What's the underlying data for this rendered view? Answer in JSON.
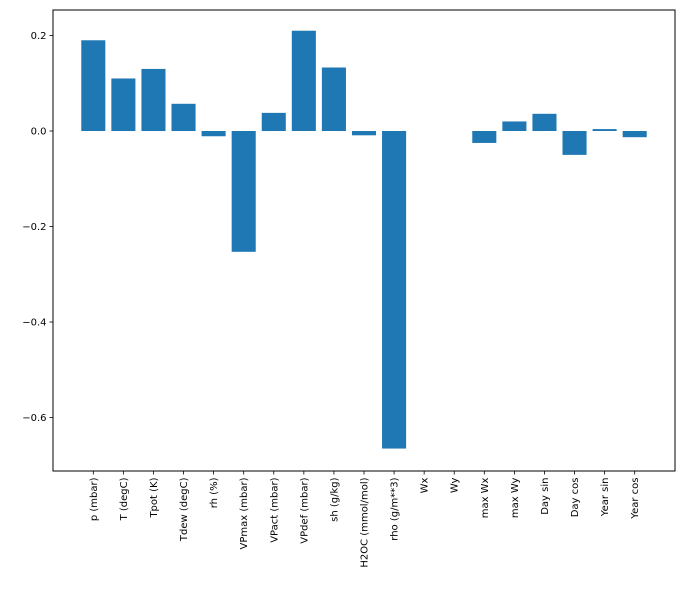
{
  "chart_data": {
    "type": "bar",
    "categories": [
      "p (mbar)",
      "T (degC)",
      "Tpot (K)",
      "Tdew (degC)",
      "rh (%)",
      "VPmax (mbar)",
      "VPact (mbar)",
      "VPdef (mbar)",
      "sh (g/kg)",
      "H2OC (mmol/mol)",
      "rho (g/m**3)",
      "Wx",
      "Wy",
      "max Wx",
      "max Wy",
      "Day sin",
      "Day cos",
      "Year sin",
      "Year cos"
    ],
    "values": [
      0.19,
      0.11,
      0.13,
      0.057,
      -0.011,
      -0.253,
      0.038,
      0.21,
      0.133,
      -0.009,
      -0.665,
      0.0,
      0.0,
      -0.025,
      0.02,
      0.036,
      -0.05,
      0.004,
      -0.013
    ],
    "bar_color": "#1f77b4",
    "spine_color": "#000000",
    "background_color": "#ffffff",
    "ylim": [
      -0.712,
      0.2534
    ],
    "xlim": [
      -1.34,
      19.34
    ],
    "bar_width_units": 0.8,
    "ytick_values": [
      0.2,
      0.0,
      -0.2,
      -0.4,
      -0.6
    ],
    "ytick_labels": [
      "0.2",
      "0.0",
      "−0.2",
      "−0.4",
      "−0.6"
    ],
    "xtick_rotation": 90,
    "grid": false,
    "legend": "none"
  }
}
